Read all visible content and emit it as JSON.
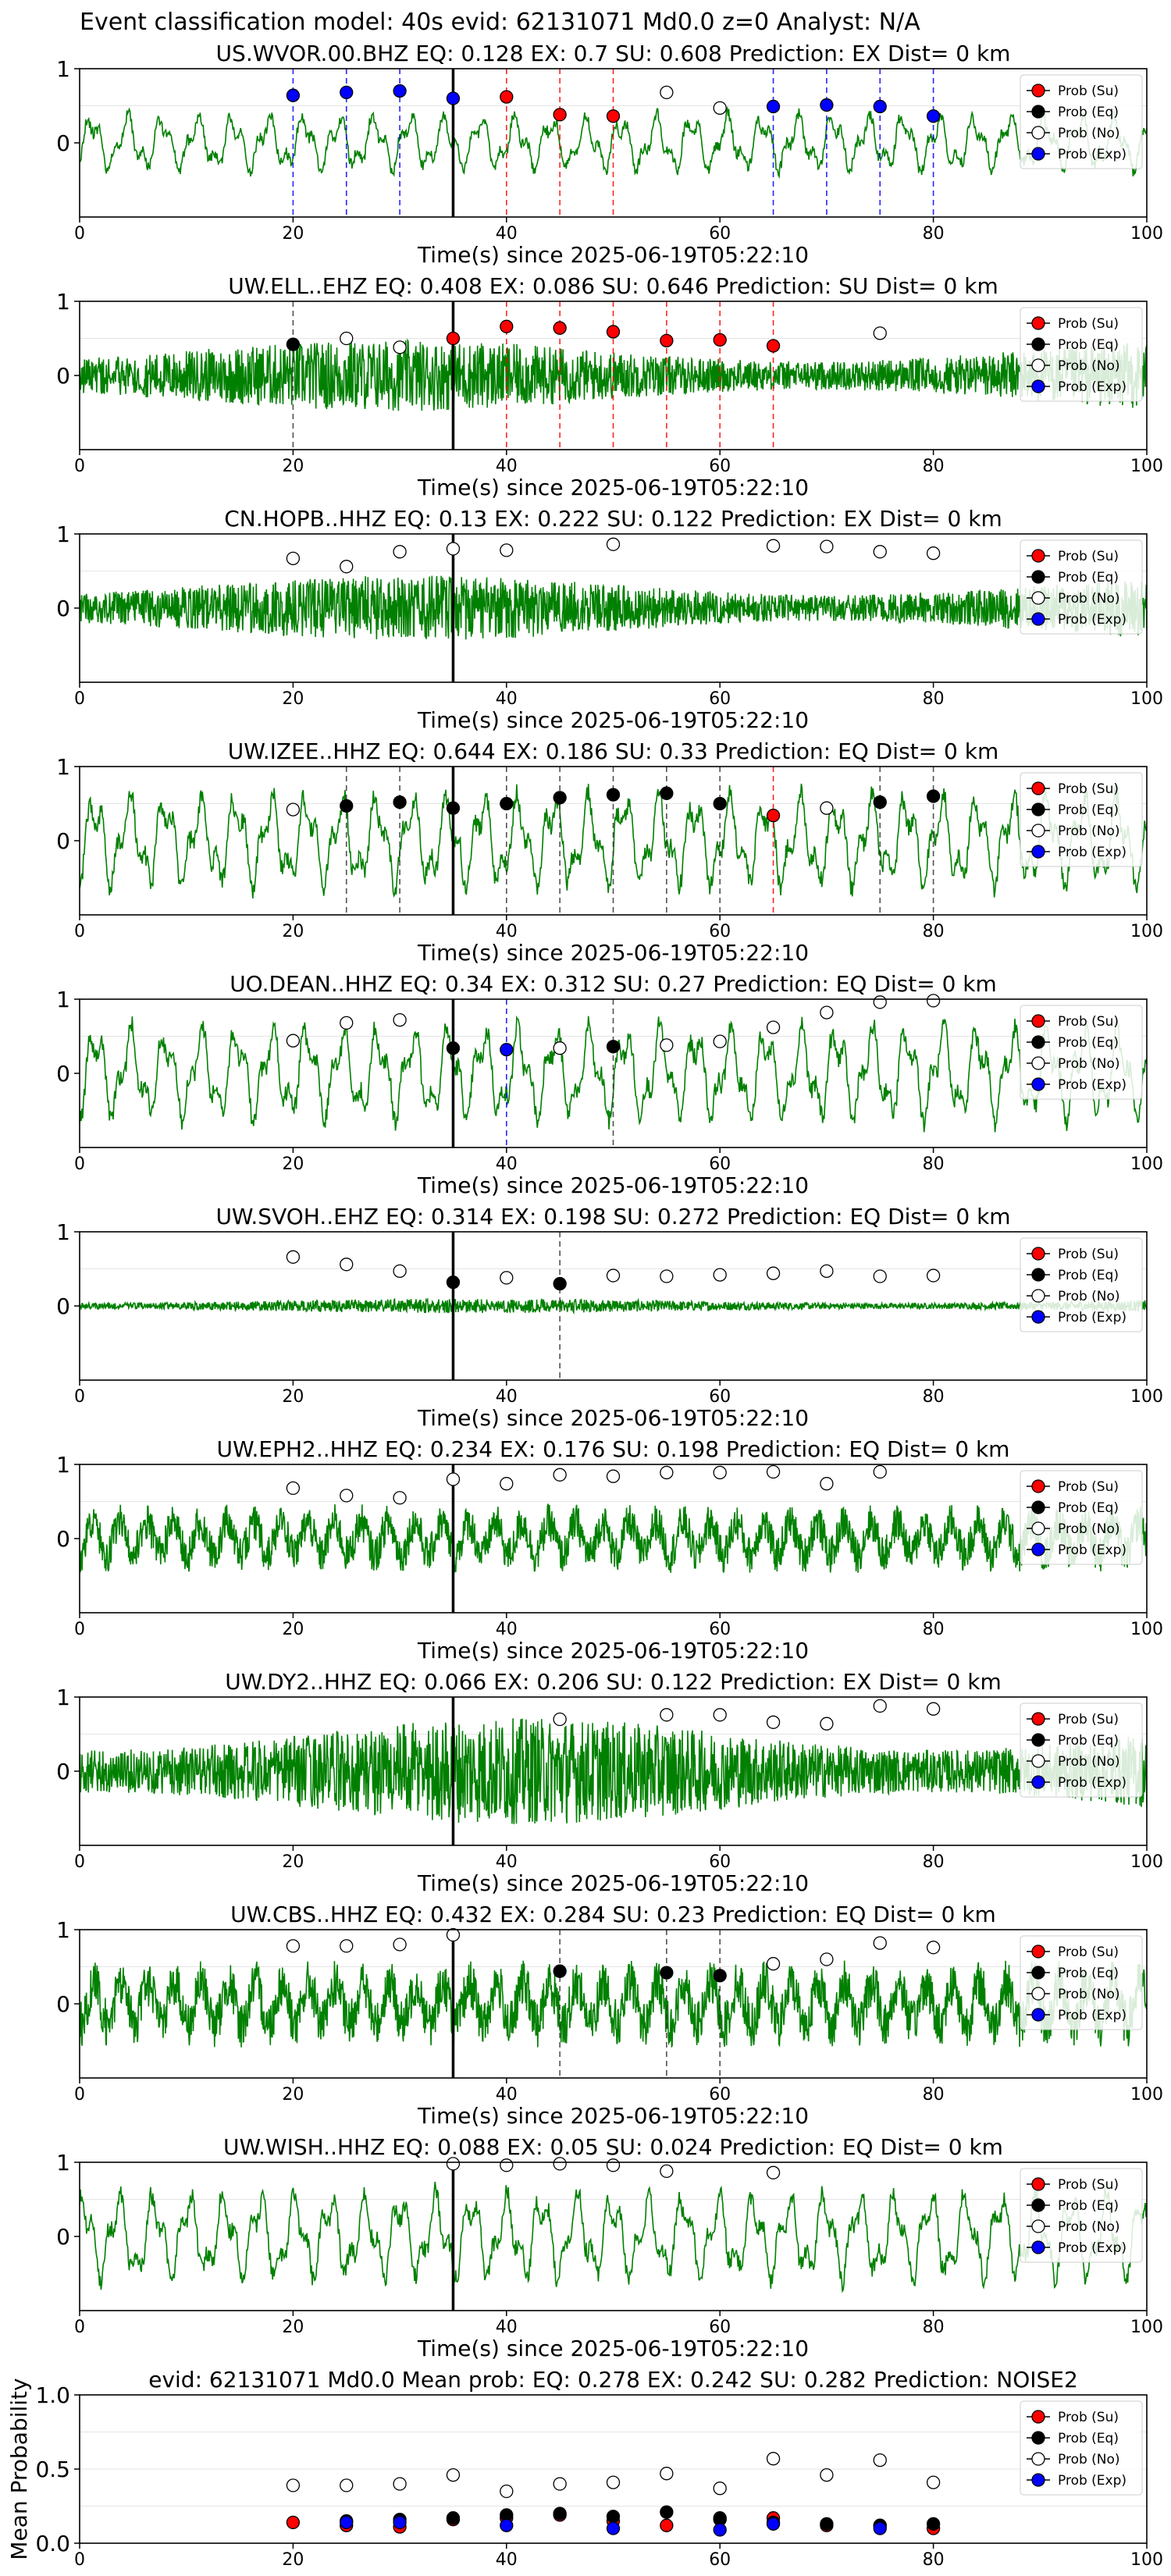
{
  "figure_title": "Event classification model: 40s evid: 62131071 Md0.0 z=0 Analyst: N/A",
  "legend_labels": [
    "Prob (Su)",
    "Prob (Eq)",
    "Prob (No)",
    "Prob (Exp)"
  ],
  "colors": {
    "su": "#ff0000",
    "eq": "#000000",
    "no": "#ffffff",
    "exp": "#0000ff",
    "waveform": "#008000",
    "p_arrival": "#000000"
  },
  "x_common": {
    "xlabel": "Time(s) since 2025-06-19T05:22:10",
    "xlim": [
      0,
      100
    ],
    "xticks": [
      "0",
      "20",
      "40",
      "60",
      "80",
      "100"
    ]
  },
  "chart_data": [
    {
      "type": "scatter+waveform",
      "title": "US.WVOR.00.BHZ   EQ: 0.128   EX: 0.7   SU: 0.608   Prediction: EX    Dist= 0 km",
      "ylim": [
        -1,
        1
      ],
      "yticks": [
        "0",
        "1"
      ],
      "p_arrival": 35,
      "waveform": {
        "amp": 0.45,
        "style": "lowfreq",
        "seed": 11
      },
      "points": [
        {
          "x": 20,
          "y": 0.64,
          "cls": "exp"
        },
        {
          "x": 25,
          "y": 0.68,
          "cls": "exp"
        },
        {
          "x": 30,
          "y": 0.7,
          "cls": "exp"
        },
        {
          "x": 35,
          "y": 0.6,
          "cls": "exp"
        },
        {
          "x": 40,
          "y": 0.62,
          "cls": "su"
        },
        {
          "x": 45,
          "y": 0.38,
          "cls": "su"
        },
        {
          "x": 50,
          "y": 0.36,
          "cls": "su"
        },
        {
          "x": 55,
          "y": 0.68,
          "cls": "no"
        },
        {
          "x": 60,
          "y": 0.47,
          "cls": "no"
        },
        {
          "x": 65,
          "y": 0.49,
          "cls": "exp"
        },
        {
          "x": 70,
          "y": 0.51,
          "cls": "exp"
        },
        {
          "x": 75,
          "y": 0.49,
          "cls": "exp"
        },
        {
          "x": 80,
          "y": 0.36,
          "cls": "exp"
        }
      ]
    },
    {
      "type": "scatter+waveform",
      "title": "UW.ELL..EHZ   EQ: 0.408  EX: 0.086  SU: 0.646   Prediction: SU    Dist= 0 km",
      "ylim": [
        -1,
        1
      ],
      "yticks": [
        "0",
        "1"
      ],
      "p_arrival": 35,
      "waveform": {
        "amp": 0.6,
        "style": "dense",
        "seed": 22
      },
      "points": [
        {
          "x": 20,
          "y": 0.42,
          "cls": "eq"
        },
        {
          "x": 25,
          "y": 0.5,
          "cls": "no"
        },
        {
          "x": 30,
          "y": 0.38,
          "cls": "no"
        },
        {
          "x": 35,
          "y": 0.5,
          "cls": "su"
        },
        {
          "x": 40,
          "y": 0.66,
          "cls": "su"
        },
        {
          "x": 45,
          "y": 0.64,
          "cls": "su"
        },
        {
          "x": 50,
          "y": 0.59,
          "cls": "su"
        },
        {
          "x": 55,
          "y": 0.47,
          "cls": "su"
        },
        {
          "x": 60,
          "y": 0.48,
          "cls": "su"
        },
        {
          "x": 65,
          "y": 0.4,
          "cls": "su"
        },
        {
          "x": 75,
          "y": 0.57,
          "cls": "no"
        }
      ]
    },
    {
      "type": "scatter+waveform",
      "title": "CN.HOPB..HHZ   EQ: 0.13  EX: 0.222  SU: 0.122   Prediction: EX    Dist= 0 km",
      "ylim": [
        -1,
        1
      ],
      "yticks": [
        "0",
        "1"
      ],
      "p_arrival": 35,
      "waveform": {
        "amp": 0.55,
        "style": "dense",
        "seed": 33
      },
      "points": [
        {
          "x": 20,
          "y": 0.67,
          "cls": "no"
        },
        {
          "x": 25,
          "y": 0.56,
          "cls": "no"
        },
        {
          "x": 30,
          "y": 0.76,
          "cls": "no"
        },
        {
          "x": 35,
          "y": 0.8,
          "cls": "no"
        },
        {
          "x": 40,
          "y": 0.78,
          "cls": "no"
        },
        {
          "x": 50,
          "y": 0.86,
          "cls": "no"
        },
        {
          "x": 65,
          "y": 0.84,
          "cls": "no"
        },
        {
          "x": 70,
          "y": 0.83,
          "cls": "no"
        },
        {
          "x": 75,
          "y": 0.76,
          "cls": "no"
        },
        {
          "x": 80,
          "y": 0.74,
          "cls": "no"
        }
      ]
    },
    {
      "type": "scatter+waveform",
      "title": "UW.IZEE..HHZ   EQ: 0.644  EX: 0.186  SU: 0.33   Prediction: EQ    Dist= 0 km",
      "ylim": [
        -1,
        1
      ],
      "yticks": [
        "0",
        "1"
      ],
      "p_arrival": 35,
      "waveform": {
        "amp": 0.75,
        "style": "lowfreq",
        "seed": 44
      },
      "points": [
        {
          "x": 20,
          "y": 0.42,
          "cls": "no"
        },
        {
          "x": 25,
          "y": 0.47,
          "cls": "eq"
        },
        {
          "x": 30,
          "y": 0.52,
          "cls": "eq"
        },
        {
          "x": 35,
          "y": 0.44,
          "cls": "eq"
        },
        {
          "x": 40,
          "y": 0.5,
          "cls": "eq"
        },
        {
          "x": 45,
          "y": 0.58,
          "cls": "eq"
        },
        {
          "x": 50,
          "y": 0.62,
          "cls": "eq"
        },
        {
          "x": 55,
          "y": 0.64,
          "cls": "eq"
        },
        {
          "x": 60,
          "y": 0.5,
          "cls": "eq"
        },
        {
          "x": 65,
          "y": 0.34,
          "cls": "su"
        },
        {
          "x": 70,
          "y": 0.44,
          "cls": "no"
        },
        {
          "x": 75,
          "y": 0.52,
          "cls": "eq"
        },
        {
          "x": 80,
          "y": 0.6,
          "cls": "eq"
        }
      ]
    },
    {
      "type": "scatter+waveform",
      "title": "UO.DEAN..HHZ   EQ: 0.34  EX: 0.312  SU: 0.27   Prediction: EQ    Dist= 0 km",
      "ylim": [
        -1,
        1
      ],
      "yticks": [
        "0",
        "1"
      ],
      "p_arrival": 35,
      "waveform": {
        "amp": 0.75,
        "style": "lowfreq",
        "seed": 55
      },
      "points": [
        {
          "x": 20,
          "y": 0.44,
          "cls": "no"
        },
        {
          "x": 25,
          "y": 0.68,
          "cls": "no"
        },
        {
          "x": 30,
          "y": 0.72,
          "cls": "no"
        },
        {
          "x": 35,
          "y": 0.34,
          "cls": "eq"
        },
        {
          "x": 40,
          "y": 0.32,
          "cls": "exp"
        },
        {
          "x": 45,
          "y": 0.34,
          "cls": "no"
        },
        {
          "x": 50,
          "y": 0.36,
          "cls": "eq"
        },
        {
          "x": 55,
          "y": 0.38,
          "cls": "no"
        },
        {
          "x": 60,
          "y": 0.43,
          "cls": "no"
        },
        {
          "x": 65,
          "y": 0.62,
          "cls": "no"
        },
        {
          "x": 70,
          "y": 0.82,
          "cls": "no"
        },
        {
          "x": 75,
          "y": 0.96,
          "cls": "no"
        },
        {
          "x": 80,
          "y": 0.98,
          "cls": "no"
        }
      ]
    },
    {
      "type": "scatter+waveform",
      "title": "UW.SVOH..EHZ   EQ: 0.314  EX: 0.198  SU: 0.272   Prediction: EQ    Dist= 0 km",
      "ylim": [
        -1,
        1
      ],
      "yticks": [
        "0",
        "1"
      ],
      "p_arrival": 35,
      "waveform": {
        "amp": 0.12,
        "style": "dense",
        "seed": 66
      },
      "points": [
        {
          "x": 20,
          "y": 0.66,
          "cls": "no"
        },
        {
          "x": 25,
          "y": 0.56,
          "cls": "no"
        },
        {
          "x": 30,
          "y": 0.47,
          "cls": "no"
        },
        {
          "x": 35,
          "y": 0.32,
          "cls": "eq"
        },
        {
          "x": 40,
          "y": 0.38,
          "cls": "no"
        },
        {
          "x": 45,
          "y": 0.3,
          "cls": "eq"
        },
        {
          "x": 50,
          "y": 0.41,
          "cls": "no"
        },
        {
          "x": 55,
          "y": 0.4,
          "cls": "no"
        },
        {
          "x": 60,
          "y": 0.42,
          "cls": "no"
        },
        {
          "x": 65,
          "y": 0.44,
          "cls": "no"
        },
        {
          "x": 70,
          "y": 0.47,
          "cls": "no"
        },
        {
          "x": 75,
          "y": 0.4,
          "cls": "no"
        },
        {
          "x": 80,
          "y": 0.41,
          "cls": "no"
        }
      ]
    },
    {
      "type": "scatter+waveform",
      "title": "UW.EPH2..HHZ   EQ: 0.234  EX: 0.176  SU: 0.198   Prediction: EQ    Dist= 0 km",
      "ylim": [
        -1,
        1
      ],
      "yticks": [
        "0",
        "1"
      ],
      "p_arrival": 35,
      "waveform": {
        "amp": 0.55,
        "style": "mixed",
        "seed": 77
      },
      "points": [
        {
          "x": 20,
          "y": 0.68,
          "cls": "no"
        },
        {
          "x": 25,
          "y": 0.58,
          "cls": "no"
        },
        {
          "x": 30,
          "y": 0.55,
          "cls": "no"
        },
        {
          "x": 35,
          "y": 0.8,
          "cls": "no"
        },
        {
          "x": 40,
          "y": 0.74,
          "cls": "no"
        },
        {
          "x": 45,
          "y": 0.86,
          "cls": "no"
        },
        {
          "x": 50,
          "y": 0.84,
          "cls": "no"
        },
        {
          "x": 55,
          "y": 0.89,
          "cls": "no"
        },
        {
          "x": 60,
          "y": 0.89,
          "cls": "no"
        },
        {
          "x": 65,
          "y": 0.9,
          "cls": "no"
        },
        {
          "x": 70,
          "y": 0.74,
          "cls": "no"
        },
        {
          "x": 75,
          "y": 0.9,
          "cls": "no"
        }
      ]
    },
    {
      "type": "scatter+waveform",
      "title": "UW.DY2..HHZ   EQ: 0.066  EX: 0.206  SU: 0.122   Prediction: EX    Dist= 0 km",
      "ylim": [
        -1,
        1
      ],
      "yticks": [
        "0",
        "1"
      ],
      "p_arrival": 35,
      "waveform": {
        "amp": 0.9,
        "style": "dense",
        "seed": 88
      },
      "points": [
        {
          "x": 45,
          "y": 0.7,
          "cls": "no"
        },
        {
          "x": 55,
          "y": 0.76,
          "cls": "no"
        },
        {
          "x": 60,
          "y": 0.76,
          "cls": "no"
        },
        {
          "x": 65,
          "y": 0.66,
          "cls": "no"
        },
        {
          "x": 70,
          "y": 0.64,
          "cls": "no"
        },
        {
          "x": 75,
          "y": 0.88,
          "cls": "no"
        },
        {
          "x": 80,
          "y": 0.84,
          "cls": "no"
        }
      ]
    },
    {
      "type": "scatter+waveform",
      "title": "UW.CBS..HHZ   EQ: 0.432  EX: 0.284  SU: 0.23   Prediction: EQ    Dist= 0 km",
      "ylim": [
        -1,
        1
      ],
      "yticks": [
        "0",
        "1"
      ],
      "p_arrival": 35,
      "waveform": {
        "amp": 0.7,
        "style": "mixed",
        "seed": 99
      },
      "points": [
        {
          "x": 20,
          "y": 0.78,
          "cls": "no"
        },
        {
          "x": 25,
          "y": 0.78,
          "cls": "no"
        },
        {
          "x": 30,
          "y": 0.8,
          "cls": "no"
        },
        {
          "x": 35,
          "y": 0.93,
          "cls": "no"
        },
        {
          "x": 45,
          "y": 0.44,
          "cls": "eq"
        },
        {
          "x": 55,
          "y": 0.42,
          "cls": "eq"
        },
        {
          "x": 60,
          "y": 0.38,
          "cls": "eq"
        },
        {
          "x": 65,
          "y": 0.54,
          "cls": "no"
        },
        {
          "x": 70,
          "y": 0.6,
          "cls": "no"
        },
        {
          "x": 75,
          "y": 0.82,
          "cls": "no"
        },
        {
          "x": 80,
          "y": 0.76,
          "cls": "no"
        }
      ]
    },
    {
      "type": "scatter+waveform",
      "title": "UW.WISH..HHZ   EQ: 0.088  EX: 0.05  SU: 0.024   Prediction: EQ    Dist= 0 km",
      "ylim": [
        -1,
        1
      ],
      "yticks": [
        "0",
        "1"
      ],
      "p_arrival": 35,
      "waveform": {
        "amp": 0.7,
        "style": "lowfreq",
        "seed": 111
      },
      "points": [
        {
          "x": 35,
          "y": 0.98,
          "cls": "no"
        },
        {
          "x": 40,
          "y": 0.96,
          "cls": "no"
        },
        {
          "x": 45,
          "y": 0.98,
          "cls": "no"
        },
        {
          "x": 50,
          "y": 0.96,
          "cls": "no"
        },
        {
          "x": 55,
          "y": 0.88,
          "cls": "no"
        },
        {
          "x": 65,
          "y": 0.86,
          "cls": "no"
        }
      ]
    },
    {
      "type": "scatter",
      "title": "evid: 62131071  Md0.0   Mean prob:   EQ: 0.278  EX: 0.242  SU: 0.282   Prediction: NOISE2",
      "ylabel": "Mean Probability",
      "ylim": [
        0,
        1
      ],
      "yticks": [
        "0.0",
        "0.5",
        "1.0"
      ],
      "points": [
        {
          "x": 20,
          "y": 0.39,
          "cls": "no"
        },
        {
          "x": 25,
          "y": 0.39,
          "cls": "no"
        },
        {
          "x": 30,
          "y": 0.4,
          "cls": "no"
        },
        {
          "x": 35,
          "y": 0.46,
          "cls": "no"
        },
        {
          "x": 40,
          "y": 0.35,
          "cls": "no"
        },
        {
          "x": 45,
          "y": 0.4,
          "cls": "no"
        },
        {
          "x": 50,
          "y": 0.41,
          "cls": "no"
        },
        {
          "x": 55,
          "y": 0.47,
          "cls": "no"
        },
        {
          "x": 60,
          "y": 0.37,
          "cls": "no"
        },
        {
          "x": 65,
          "y": 0.57,
          "cls": "no"
        },
        {
          "x": 70,
          "y": 0.46,
          "cls": "no"
        },
        {
          "x": 75,
          "y": 0.56,
          "cls": "no"
        },
        {
          "x": 80,
          "y": 0.41,
          "cls": "no"
        },
        {
          "x": 20,
          "y": 0.14,
          "cls": "su"
        },
        {
          "x": 25,
          "y": 0.12,
          "cls": "su"
        },
        {
          "x": 30,
          "y": 0.11,
          "cls": "su"
        },
        {
          "x": 35,
          "y": 0.16,
          "cls": "su"
        },
        {
          "x": 40,
          "y": 0.17,
          "cls": "su"
        },
        {
          "x": 45,
          "y": 0.19,
          "cls": "su"
        },
        {
          "x": 50,
          "y": 0.15,
          "cls": "su"
        },
        {
          "x": 55,
          "y": 0.12,
          "cls": "su"
        },
        {
          "x": 60,
          "y": 0.16,
          "cls": "su"
        },
        {
          "x": 65,
          "y": 0.17,
          "cls": "su"
        },
        {
          "x": 70,
          "y": 0.12,
          "cls": "su"
        },
        {
          "x": 75,
          "y": 0.12,
          "cls": "su"
        },
        {
          "x": 80,
          "y": 0.1,
          "cls": "su"
        },
        {
          "x": 25,
          "y": 0.15,
          "cls": "eq"
        },
        {
          "x": 30,
          "y": 0.16,
          "cls": "eq"
        },
        {
          "x": 35,
          "y": 0.17,
          "cls": "eq"
        },
        {
          "x": 40,
          "y": 0.19,
          "cls": "eq"
        },
        {
          "x": 45,
          "y": 0.2,
          "cls": "eq"
        },
        {
          "x": 50,
          "y": 0.18,
          "cls": "eq"
        },
        {
          "x": 55,
          "y": 0.21,
          "cls": "eq"
        },
        {
          "x": 60,
          "y": 0.17,
          "cls": "eq"
        },
        {
          "x": 65,
          "y": 0.14,
          "cls": "eq"
        },
        {
          "x": 70,
          "y": 0.13,
          "cls": "eq"
        },
        {
          "x": 75,
          "y": 0.12,
          "cls": "eq"
        },
        {
          "x": 80,
          "y": 0.13,
          "cls": "eq"
        },
        {
          "x": 25,
          "y": 0.14,
          "cls": "exp"
        },
        {
          "x": 30,
          "y": 0.14,
          "cls": "exp"
        },
        {
          "x": 40,
          "y": 0.12,
          "cls": "exp"
        },
        {
          "x": 50,
          "y": 0.1,
          "cls": "exp"
        },
        {
          "x": 60,
          "y": 0.09,
          "cls": "exp"
        },
        {
          "x": 65,
          "y": 0.13,
          "cls": "exp"
        },
        {
          "x": 75,
          "y": 0.1,
          "cls": "exp"
        }
      ]
    }
  ]
}
